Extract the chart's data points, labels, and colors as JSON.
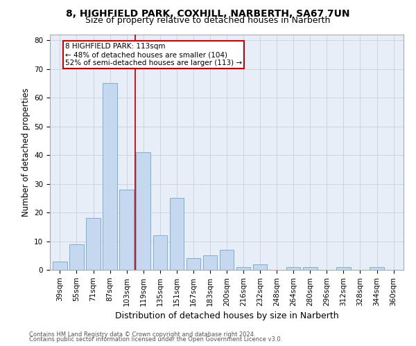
{
  "title1": "8, HIGHFIELD PARK, COXHILL, NARBERTH, SA67 7UN",
  "title2": "Size of property relative to detached houses in Narberth",
  "xlabel": "Distribution of detached houses by size in Narberth",
  "ylabel": "Number of detached properties",
  "footnote1": "Contains HM Land Registry data © Crown copyright and database right 2024.",
  "footnote2": "Contains public sector information licensed under the Open Government Licence v3.0.",
  "categories": [
    "39sqm",
    "55sqm",
    "71sqm",
    "87sqm",
    "103sqm",
    "119sqm",
    "135sqm",
    "151sqm",
    "167sqm",
    "183sqm",
    "200sqm",
    "216sqm",
    "232sqm",
    "248sqm",
    "264sqm",
    "280sqm",
    "296sqm",
    "312sqm",
    "328sqm",
    "344sqm",
    "360sqm"
  ],
  "values": [
    3,
    9,
    18,
    65,
    28,
    41,
    12,
    25,
    4,
    5,
    7,
    1,
    2,
    0,
    1,
    1,
    0,
    1,
    0,
    1,
    0
  ],
  "bar_color": "#c5d8f0",
  "bar_edge_color": "#7bafd4",
  "vline_x": 4.5,
  "vline_color": "#cc0000",
  "annotation_line1": "8 HIGHFIELD PARK: 113sqm",
  "annotation_line2": "← 48% of detached houses are smaller (104)",
  "annotation_line3": "52% of semi-detached houses are larger (113) →",
  "annotation_box_color": "#ffffff",
  "annotation_box_edge_color": "#cc0000",
  "ylim": [
    0,
    82
  ],
  "yticks": [
    0,
    10,
    20,
    30,
    40,
    50,
    60,
    70,
    80
  ],
  "grid_color": "#c8d0dc",
  "bg_color": "#e8eef8",
  "title1_fontsize": 10,
  "title2_fontsize": 9,
  "xlabel_fontsize": 9,
  "ylabel_fontsize": 8.5,
  "tick_fontsize": 7.5,
  "annotation_fontsize": 7.5
}
